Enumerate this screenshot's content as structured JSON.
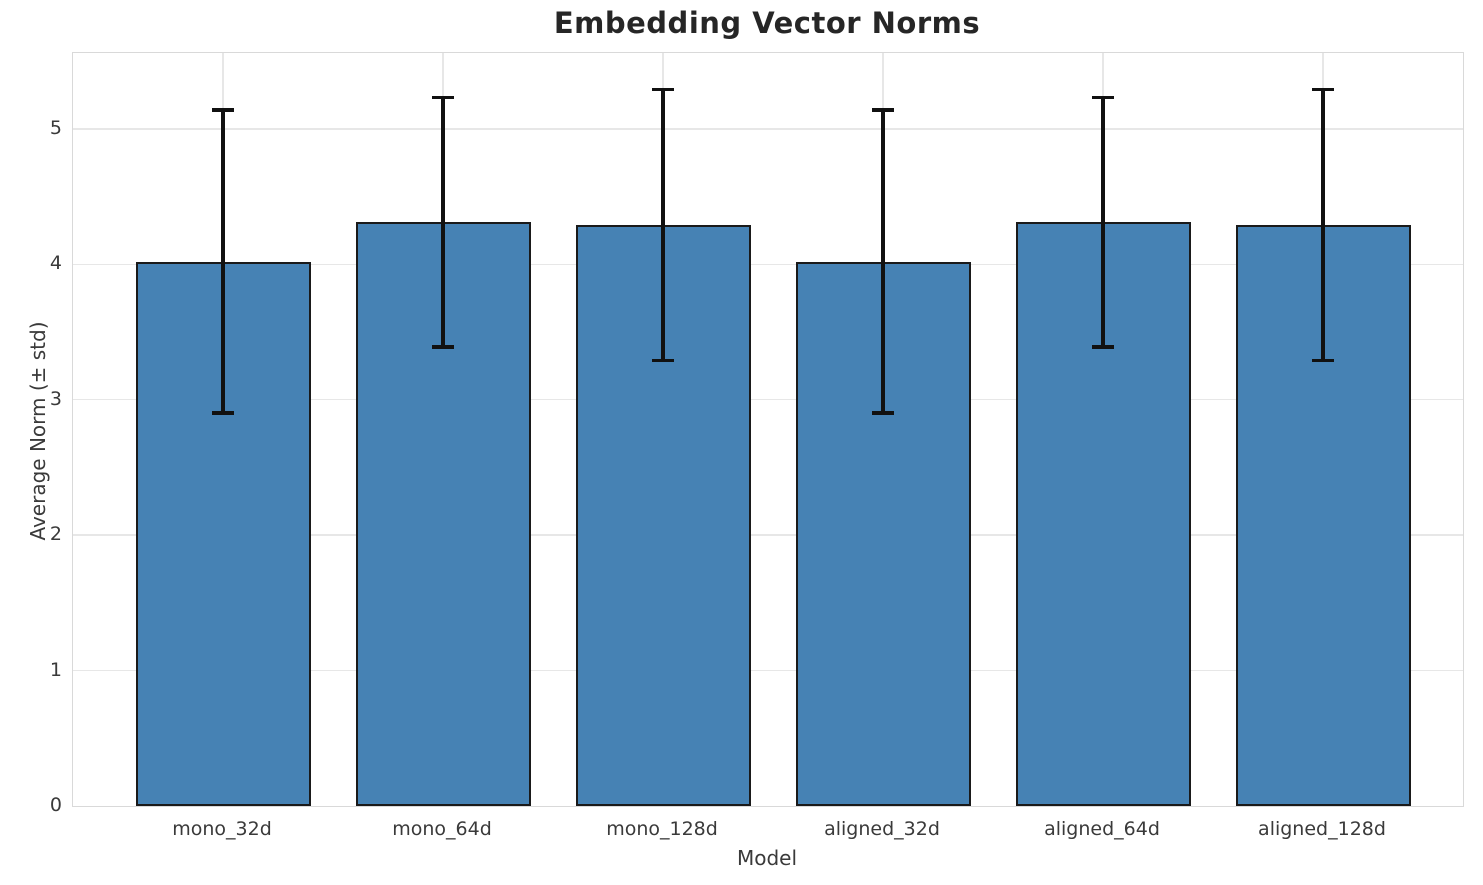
{
  "chart_data": {
    "type": "bar",
    "title": "Embedding Vector Norms",
    "xlabel": "Model",
    "ylabel": "Average Norm (± std)",
    "categories": [
      "mono_32d",
      "mono_64d",
      "mono_128d",
      "aligned_32d",
      "aligned_64d",
      "aligned_128d"
    ],
    "values": [
      4.02,
      4.31,
      4.29,
      4.02,
      4.31,
      4.29
    ],
    "error_std": [
      1.12,
      0.92,
      1.0,
      1.12,
      0.92,
      1.0
    ],
    "error_low": [
      2.9,
      3.39,
      3.29,
      2.9,
      3.39,
      3.29
    ],
    "error_high": [
      5.14,
      5.23,
      5.29,
      5.14,
      5.23,
      5.29
    ],
    "yticks": [
      0,
      1,
      2,
      3,
      4,
      5
    ],
    "ylim": [
      0,
      5.56
    ],
    "grid": true,
    "legend": "none",
    "bar_color": "#4682b4",
    "bar_edge_color": "#1a1a1a",
    "error_color": "#111111",
    "grid_color": "#e7e7e7"
  }
}
